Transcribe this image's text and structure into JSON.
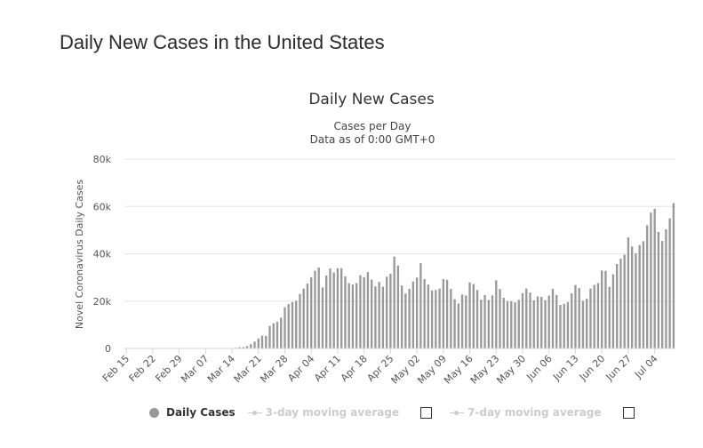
{
  "page": {
    "title": "Daily New Cases in the United States"
  },
  "legend": {
    "daily_cases": "Daily Cases",
    "avg3": "3-day moving average",
    "avg7": "7-day moving average"
  },
  "colors": {
    "bar": "#999999",
    "grid": "#e6e6e6",
    "axis": "#ccd6eb",
    "inactive": "#cccccc"
  },
  "chart_data": {
    "type": "bar",
    "title": "Daily New Cases",
    "subtitle": [
      "Cases per Day",
      "Data as of 0:00 GMT+0"
    ],
    "ylabel": "Novel Coronavirus Daily Cases",
    "xlabel": "",
    "ylim": [
      0,
      80000
    ],
    "yticks": [
      0,
      20000,
      40000,
      60000,
      80000
    ],
    "ytick_labels": [
      "0",
      "20k",
      "40k",
      "60k",
      "80k"
    ],
    "grid": true,
    "legend_position": "bottom",
    "start_date": "2020-02-15",
    "xtick_labels": [
      "Feb 15",
      "Feb 22",
      "Feb 29",
      "Mar 07",
      "Mar 14",
      "Mar 21",
      "Mar 28",
      "Apr 04",
      "Apr 11",
      "Apr 18",
      "Apr 25",
      "May 02",
      "May 09",
      "May 16",
      "May 23",
      "May 30",
      "Jun 06",
      "Jun 13",
      "Jun 20",
      "Jun 27",
      "Jul 04"
    ],
    "series": [
      {
        "name": "Daily Cases",
        "values": [
          0,
          0,
          0,
          0,
          0,
          0,
          0,
          0,
          0,
          0,
          0,
          0,
          0,
          0,
          0,
          0,
          0,
          0,
          0,
          0,
          0,
          0,
          0,
          0,
          0,
          0,
          0,
          0,
          0,
          300,
          500,
          600,
          1000,
          1800,
          2900,
          4200,
          5400,
          5300,
          9500,
          10600,
          11300,
          13000,
          17400,
          18800,
          19600,
          20100,
          23000,
          25300,
          27400,
          30100,
          32800,
          34200,
          25800,
          30800,
          33800,
          32100,
          33900,
          33900,
          30500,
          27600,
          27000,
          27600,
          30900,
          30100,
          32300,
          29100,
          26200,
          28100,
          26100,
          30300,
          31600,
          38800,
          35000,
          26600,
          23200,
          25200,
          28300,
          30000,
          36000,
          29300,
          27000,
          24500,
          24700,
          25300,
          29300,
          29000,
          25200,
          20800,
          19000,
          22800,
          22400,
          27900,
          27200,
          24700,
          20600,
          22600,
          20500,
          22400,
          28800,
          25100,
          21400,
          20000,
          19900,
          19500,
          20500,
          23400,
          25300,
          23600,
          20300,
          22000,
          21800,
          20400,
          22300,
          25200,
          22600,
          18400,
          18900,
          19600,
          23300,
          26800,
          25500,
          20100,
          21000,
          25300,
          26800,
          27600,
          32900,
          32800,
          26000,
          31300,
          35700,
          37900,
          39600,
          46900,
          43100,
          40200,
          43700,
          45300,
          52000,
          57400,
          59000,
          49200,
          45400,
          50300,
          55000,
          61400
        ]
      }
    ]
  }
}
